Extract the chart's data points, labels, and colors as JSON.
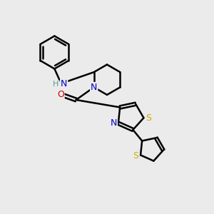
{
  "background_color": "#ebebeb",
  "bond_color": "#000000",
  "bond_width": 1.8,
  "atom_colors": {
    "C": "#000000",
    "N": "#0000cc",
    "O": "#cc0000",
    "S": "#ccaa00",
    "H": "#5a9a8a"
  },
  "font_size": 9,
  "figsize": [
    3.0,
    3.0
  ],
  "dpi": 100,
  "xlim": [
    0,
    10
  ],
  "ylim": [
    0,
    10
  ]
}
